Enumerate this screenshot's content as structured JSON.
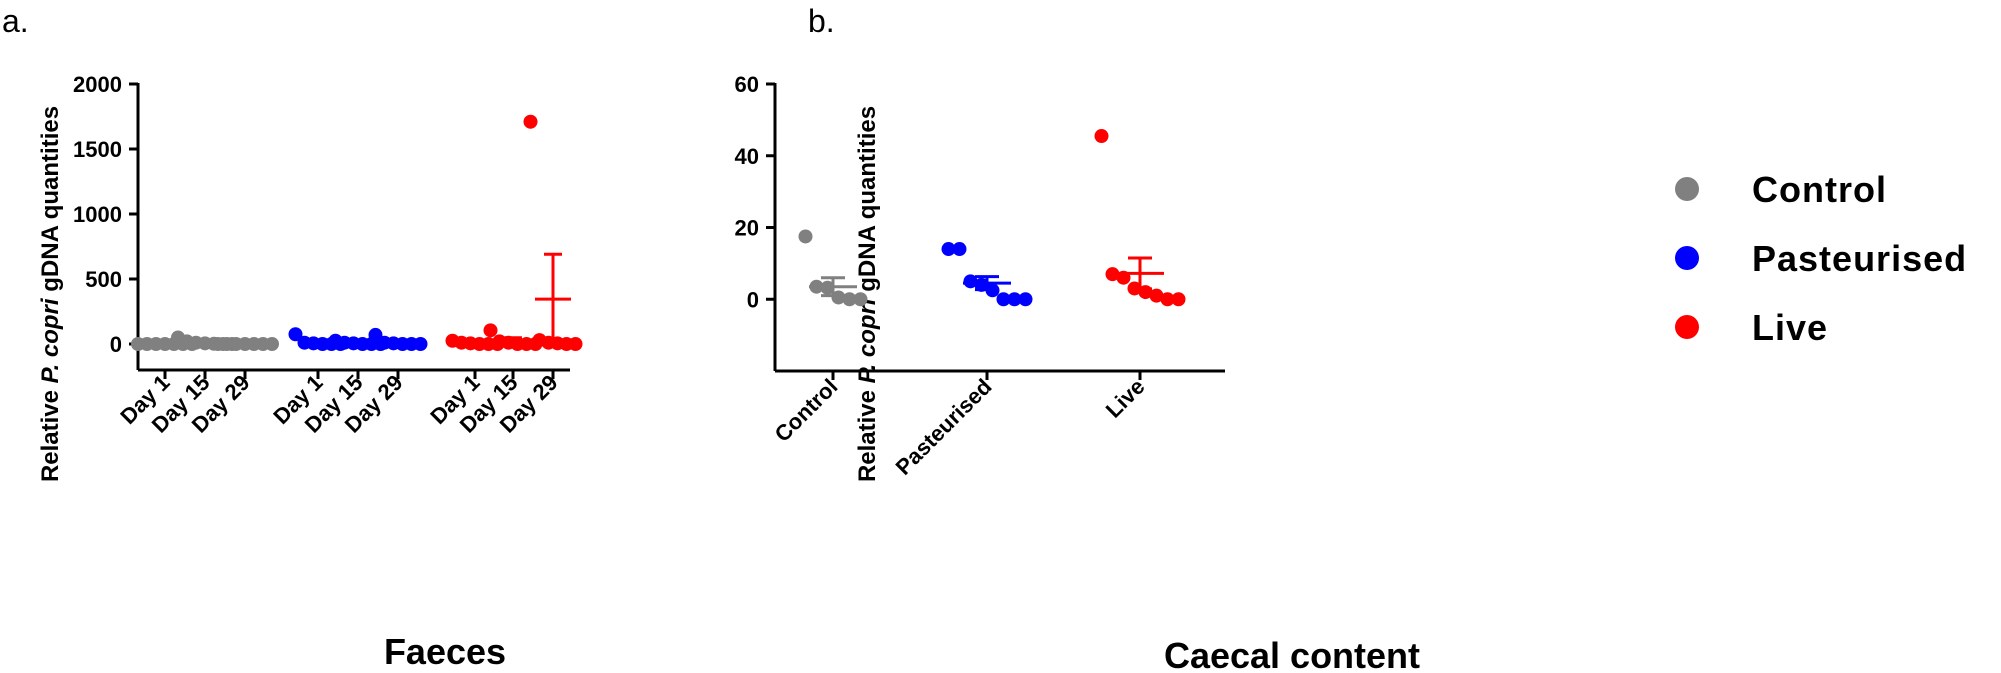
{
  "chart_data": [
    {
      "panel_label": "a.",
      "type": "scatter",
      "xlabel": "Faeces",
      "ylabel_parts": [
        {
          "text": "Relative ",
          "italic": false
        },
        {
          "text": "P. copri",
          "italic": true
        },
        {
          "text": " gDNA quantities",
          "italic": false
        }
      ],
      "ylim": [
        -200,
        2000
      ],
      "yticks": [
        0,
        500,
        1000,
        1500,
        2000
      ],
      "categories": [
        "Day 1",
        "Day 15",
        "Day 29",
        "Day 1",
        "Day 15",
        "Day 29",
        "Day 1",
        "Day 15",
        "Day 29"
      ],
      "groups": [
        {
          "name": "Control",
          "color": "#808080",
          "columns": [
            {
              "label": "Day 1",
              "mean": 0,
              "sem": 0,
              "points": [
                0,
                0,
                0,
                0,
                0,
                0,
                0
              ]
            },
            {
              "label": "Day 15",
              "mean": 20,
              "sem": 10,
              "points": [
                50,
                20,
                10,
                5,
                2,
                0,
                0
              ]
            },
            {
              "label": "Day 29",
              "mean": 0,
              "sem": 0,
              "points": [
                0,
                0,
                0,
                0,
                0,
                0,
                0
              ]
            }
          ]
        },
        {
          "name": "Pasteurised",
          "color": "#0000ff",
          "columns": [
            {
              "label": "Day 1",
              "mean": 20,
              "sem": 12,
              "points": [
                75,
                10,
                5,
                0,
                0,
                0
              ]
            },
            {
              "label": "Day 15",
              "mean": 8,
              "sem": 5,
              "points": [
                25,
                10,
                5,
                0,
                0,
                0
              ]
            },
            {
              "label": "Day 29",
              "mean": 15,
              "sem": 12,
              "points": [
                70,
                10,
                5,
                0,
                0,
                0
              ]
            }
          ]
        },
        {
          "name": "Live",
          "color": "#ff0000",
          "columns": [
            {
              "label": "Day 1",
              "mean": 10,
              "sem": 6,
              "points": [
                25,
                10,
                5,
                0,
                0,
                0
              ]
            },
            {
              "label": "Day 15",
              "mean": 30,
              "sem": 18,
              "points": [
                105,
                20,
                10,
                0,
                0,
                0
              ]
            },
            {
              "label": "Day 29",
              "mean": 345,
              "sem": 345,
              "points": [
                1710,
                30,
                10,
                5,
                0,
                0
              ]
            }
          ]
        }
      ]
    },
    {
      "panel_label": "b.",
      "type": "scatter",
      "xlabel": "Caecal content",
      "ylabel_parts": [
        {
          "text": "Relative ",
          "italic": false
        },
        {
          "text": "P. copri",
          "italic": true
        },
        {
          "text": " gDNA quantities",
          "italic": false
        }
      ],
      "ylim": [
        -20,
        60
      ],
      "yticks": [
        0,
        20,
        40,
        60
      ],
      "categories": [
        "Control",
        "Pasteurised",
        "Live"
      ],
      "groups": [
        {
          "name": "Control",
          "color": "#808080",
          "columns": [
            {
              "label": "Control",
              "mean": 3.5,
              "sem": 2.5,
              "points": [
                17.5,
                3.5,
                3.2,
                0.5,
                0,
                0
              ]
            }
          ]
        },
        {
          "name": "Pasteurised",
          "color": "#0000ff",
          "columns": [
            {
              "label": "Pasteurised",
              "mean": 4.5,
              "sem": 1.8,
              "points": [
                14,
                14,
                5,
                4,
                2.5,
                0,
                0,
                0
              ]
            }
          ]
        },
        {
          "name": "Live",
          "color": "#ff0000",
          "columns": [
            {
              "label": "Live",
              "mean": 7.2,
              "sem": 4.3,
              "points": [
                45.5,
                7,
                6,
                3,
                2,
                1,
                0,
                0
              ]
            }
          ]
        }
      ]
    }
  ],
  "legend": {
    "items": [
      {
        "label": "Control",
        "color": "#808080"
      },
      {
        "label": "Pasteurised",
        "color": "#0000ff"
      },
      {
        "label": "Live",
        "color": "#ff0000"
      }
    ]
  }
}
